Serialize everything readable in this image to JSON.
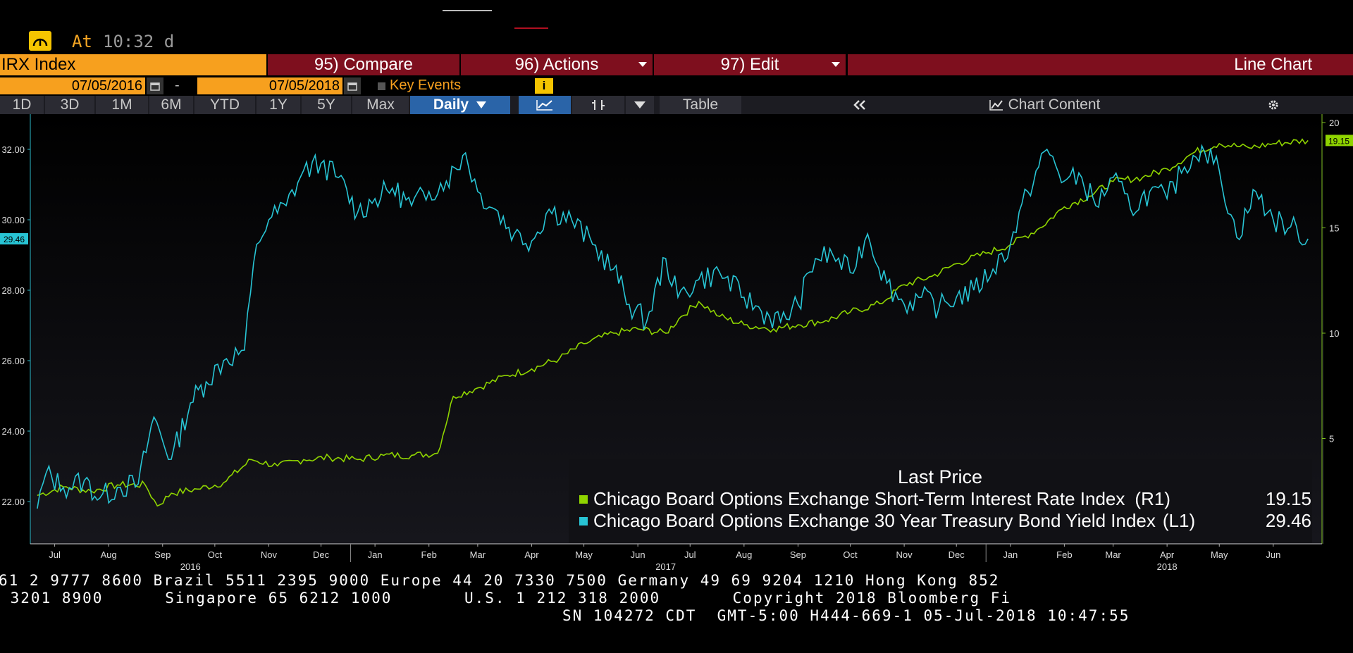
{
  "status": {
    "icon": "dashboard-gauge-icon",
    "at_label": "At",
    "time": "10:32 d"
  },
  "toolbar": {
    "ticker": "IRX Index",
    "compare": "95) Compare",
    "actions": "96) Actions",
    "edit": "97) Edit",
    "chart_kind": "Line Chart"
  },
  "dates": {
    "start": "07/05/2016",
    "dash": "-",
    "end": "07/05/2018",
    "key_events": "Key Events",
    "info": "i"
  },
  "ranges": [
    "1D",
    "3D",
    "1M",
    "6M",
    "YTD",
    "1Y",
    "5Y",
    "Max"
  ],
  "frequency": "Daily",
  "table_label": "Table",
  "chart_content_label": "Chart Content",
  "icons": {
    "calendar": "calendar-icon",
    "line": "line-chart-icon",
    "bar": "ohlc-bar-icon",
    "collapse": "double-chevron-left-icon",
    "gear": "gear-icon"
  },
  "colors": {
    "series_r1": "#8fd400",
    "series_l1": "#28c4d4",
    "accent": "#f7a01e",
    "button": "#7e0f1e"
  },
  "chart_data": {
    "type": "line",
    "legend_title": "Last Price",
    "legend_position": "bottom-right",
    "grid": false,
    "x_months": [
      "Jul",
      "Aug",
      "Sep",
      "Oct",
      "Nov",
      "Dec",
      "Jan",
      "Feb",
      "Mar",
      "Apr",
      "May",
      "Jun",
      "Jul",
      "Aug",
      "Sep",
      "Oct",
      "Nov",
      "Dec",
      "Jan",
      "Feb",
      "Mar",
      "Apr",
      "May",
      "Jun"
    ],
    "x_years": [
      "2016",
      "2017",
      "2018"
    ],
    "y_left": {
      "ticks": [
        "22.00",
        "24.00",
        "26.00",
        "28.00",
        "30.00",
        "32.00"
      ],
      "range": [
        20.8,
        33.0
      ]
    },
    "y_right": {
      "ticks": [
        "5",
        "10",
        "15",
        "20"
      ],
      "range": [
        0,
        20.4
      ]
    },
    "series": [
      {
        "name": "Chicago Board Options Exchange Short-Term Interest Rate Index",
        "axis": "(R1)",
        "last": "19.15",
        "color": "#8fd400",
        "x": [
          "2016-07-05",
          "2016-07-20",
          "2016-08-05",
          "2016-08-20",
          "2016-09-05",
          "2016-09-12",
          "2016-09-20",
          "2016-10-05",
          "2016-10-20",
          "2016-11-05",
          "2016-11-20",
          "2016-12-05",
          "2016-12-20",
          "2017-01-05",
          "2017-01-20",
          "2017-02-05",
          "2017-02-20",
          "2017-03-01",
          "2017-03-15",
          "2017-04-01",
          "2017-04-15",
          "2017-05-01",
          "2017-05-15",
          "2017-06-01",
          "2017-06-15",
          "2017-07-01",
          "2017-07-10",
          "2017-07-20",
          "2017-08-01",
          "2017-08-15",
          "2017-09-01",
          "2017-09-15",
          "2017-10-01",
          "2017-10-15",
          "2017-11-01",
          "2017-11-15",
          "2017-12-01",
          "2017-12-15",
          "2018-01-01",
          "2018-01-15",
          "2018-02-01",
          "2018-02-15",
          "2018-03-01",
          "2018-03-15",
          "2018-04-01",
          "2018-04-15",
          "2018-05-01",
          "2018-05-15",
          "2018-06-01",
          "2018-06-15",
          "2018-07-05"
        ],
        "values": [
          2.3,
          2.7,
          2.5,
          2.8,
          2.8,
          1.8,
          2.4,
          2.6,
          2.9,
          4.0,
          3.7,
          4.0,
          4.1,
          4.0,
          4.2,
          4.2,
          4.3,
          7.0,
          7.4,
          8.0,
          8.3,
          8.8,
          9.5,
          10.0,
          10.2,
          10.0,
          10.8,
          11.5,
          10.8,
          10.4,
          10.2,
          10.4,
          10.6,
          11.0,
          11.4,
          12.3,
          12.7,
          13.3,
          13.8,
          14.2,
          15.0,
          16.0,
          16.5,
          17.2,
          17.4,
          17.8,
          18.6,
          19.0,
          18.8,
          19.0,
          19.15
        ]
      },
      {
        "name": "Chicago Board Options Exchange 30 Year Treasury Bond Yield Index",
        "axis": "(L1)",
        "last": "29.46",
        "color": "#28c4d4",
        "x": [
          "2016-07-05",
          "2016-07-10",
          "2016-07-20",
          "2016-08-01",
          "2016-08-10",
          "2016-08-20",
          "2016-09-01",
          "2016-09-10",
          "2016-09-20",
          "2016-10-01",
          "2016-10-10",
          "2016-10-20",
          "2016-11-01",
          "2016-11-08",
          "2016-11-15",
          "2016-11-25",
          "2016-12-05",
          "2016-12-15",
          "2016-12-25",
          "2017-01-05",
          "2017-01-15",
          "2017-01-25",
          "2017-02-05",
          "2017-02-15",
          "2017-02-25",
          "2017-03-08",
          "2017-03-15",
          "2017-03-25",
          "2017-04-05",
          "2017-04-15",
          "2017-04-25",
          "2017-05-08",
          "2017-05-20",
          "2017-06-01",
          "2017-06-10",
          "2017-06-20",
          "2017-07-01",
          "2017-07-08",
          "2017-07-20",
          "2017-08-01",
          "2017-08-15",
          "2017-08-25",
          "2017-09-05",
          "2017-09-15",
          "2017-09-25",
          "2017-10-05",
          "2017-10-15",
          "2017-10-25",
          "2017-11-05",
          "2017-11-15",
          "2017-11-25",
          "2017-12-05",
          "2017-12-15",
          "2017-12-25",
          "2018-01-05",
          "2018-01-15",
          "2018-01-25",
          "2018-02-05",
          "2018-02-15",
          "2018-02-25",
          "2018-03-05",
          "2018-03-15",
          "2018-03-25",
          "2018-04-05",
          "2018-04-15",
          "2018-04-25",
          "2018-05-05",
          "2018-05-15",
          "2018-05-25",
          "2018-06-05",
          "2018-06-15",
          "2018-06-25",
          "2018-07-05"
        ],
        "values": [
          21.8,
          22.8,
          22.4,
          22.6,
          22.1,
          22.4,
          22.5,
          24.4,
          23.2,
          24.8,
          25.4,
          26.0,
          26.3,
          29.3,
          30.0,
          30.4,
          31.4,
          31.6,
          31.2,
          30.2,
          30.6,
          30.9,
          30.4,
          30.8,
          31.1,
          31.9,
          30.8,
          30.3,
          29.6,
          29.4,
          30.3,
          30.0,
          29.3,
          28.6,
          27.6,
          27.1,
          28.9,
          27.8,
          28.3,
          28.5,
          27.8,
          27.4,
          27.1,
          27.6,
          28.9,
          29.0,
          28.5,
          29.6,
          28.2,
          27.6,
          27.8,
          27.5,
          27.8,
          28.0,
          28.6,
          29.3,
          30.8,
          32.0,
          31.1,
          31.2,
          30.4,
          31.2,
          30.3,
          30.8,
          30.6,
          31.5,
          32.1,
          31.4,
          29.5,
          30.8,
          30.0,
          29.8,
          29.46
        ]
      }
    ]
  },
  "footer": {
    "line1": "61 2 9777 8600 Brazil 5511 2395 9000 Europe 44 20 7330 7500 Germany 49 69 9204 1210 Hong Kong 852",
    "line2": " 3201 8900      Singapore 65 6212 1000       U.S. 1 212 318 2000       Copyright 2018 Bloomberg Fi",
    "line3": "SN 104272 CDT  GMT-5:00 H444-669-1 05-Jul-2018 10:47:55"
  }
}
